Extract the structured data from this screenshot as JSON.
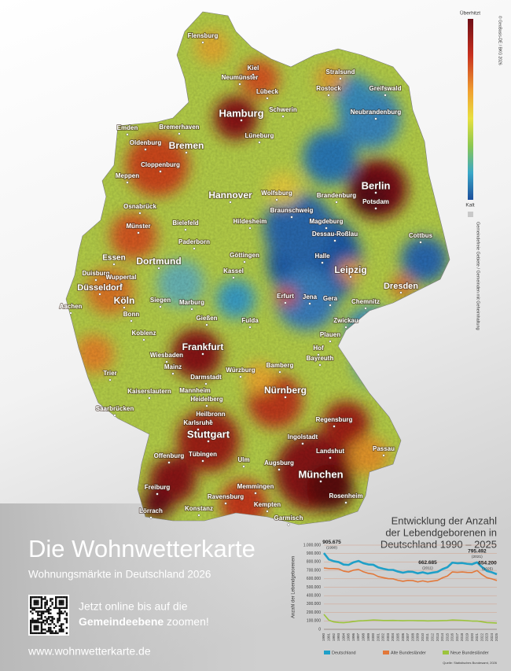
{
  "map": {
    "cities": [
      "Flensburg",
      "Kiel",
      "Neumünster",
      "Lübeck",
      "Stralsund",
      "Rostock",
      "Greifswald",
      "Hamburg",
      "Schwerin",
      "Neubrandenburg",
      "Emden",
      "Bremerhaven",
      "Lüneburg",
      "Oldenburg",
      "Bremen",
      "Cloppenburg",
      "Meppen",
      "Berlin",
      "Hannover",
      "Wolfsburg",
      "Brandenburg",
      "Potsdam",
      "Osnabrück",
      "Braunschweig",
      "Bielefeld",
      "Hildesheim",
      "Magdeburg",
      "Münster",
      "Dessau-Roßlau",
      "Cottbus",
      "Paderborn",
      "Göttingen",
      "Essen",
      "Dortmund",
      "Halle",
      "Duisburg",
      "Wuppertal",
      "Kassel",
      "Leipzig",
      "Düsseldorf",
      "Dresden",
      "Erfurt",
      "Jena",
      "Gera",
      "Chemnitz",
      "Aachen",
      "Köln",
      "Siegen",
      "Marburg",
      "Bonn",
      "Gießen",
      "Fulda",
      "Zwickau",
      "Koblenz",
      "Plauen",
      "Frankfurt",
      "Hof",
      "Bayreuth",
      "Wiesbaden",
      "Mainz",
      "Bamberg",
      "Trier",
      "Darmstadt",
      "Würzburg",
      "Mannheim",
      "Kaiserslautern",
      "Heidelberg",
      "Nürnberg",
      "Saarbrücken",
      "Heilbronn",
      "Karlsruhe",
      "Regensburg",
      "Stuttgart",
      "Ingolstadt",
      "Passau",
      "Landshut",
      "Offenburg",
      "Tübingen",
      "Ulm",
      "Augsburg",
      "München",
      "Freiburg",
      "Memmingen",
      "Ravensburg",
      "Rosenheim",
      "Kempten",
      "Konstanz",
      "Lörrach",
      "Garmisch"
    ],
    "legend": {
      "top": "Überhitzt",
      "bottom": "Kalt",
      "note": "Gemeindefreie Gebiete / Gemeinden mit Geheimhaltung"
    },
    "copyright": "© GeoBasis-DE / BKG 2026"
  },
  "poster": {
    "title": "Die Wohnwetterkarte",
    "subtitle": "Wohnungsmärkte in Deutschland 2026",
    "cta": {
      "line1": "Jetzt online bis auf die",
      "bold": "Gemeindeebene",
      "rest": " zoomen!"
    },
    "url": "www.wohnwetterkarte.de"
  },
  "chart_data": {
    "type": "line",
    "title": [
      "Entwicklung der Anzahl",
      "der Lebendgeborenen in",
      "Deutschland 1990 – 2025"
    ],
    "y_label": "Anzahl der Lebendgeborenen",
    "categories": [
      "1990",
      "1991",
      "1992",
      "1993",
      "1994",
      "1995",
      "1996",
      "1997",
      "1998",
      "1999",
      "2000",
      "2001",
      "2002",
      "2003",
      "2004",
      "2005",
      "2006",
      "2007",
      "2008",
      "2009",
      "2010",
      "2011",
      "2012",
      "2013",
      "2014",
      "2015",
      "2016",
      "2017",
      "2018",
      "2019",
      "2020",
      "2021",
      "2022",
      "2023",
      "2024",
      "2025"
    ],
    "series": [
      {
        "name": "Deutschland",
        "color": "#1fa0c8",
        "values": [
          905675,
          830019,
          809114,
          798447,
          769603,
          765221,
          796013,
          812173,
          785034,
          770744,
          766999,
          734475,
          719250,
          706721,
          705622,
          685795,
          672724,
          684862,
          682514,
          665126,
          677947,
          662685,
          673544,
          682069,
          714927,
          737575,
          792141,
          784901,
          787523,
          778090,
          773144,
          795492,
          738819,
          692989,
          677117,
          654200
        ],
        "value_labels": [
          "905.675",
          null,
          null,
          null,
          null,
          null,
          null,
          null,
          null,
          null,
          null,
          null,
          null,
          null,
          null,
          null,
          null,
          null,
          null,
          null,
          null,
          "662.685",
          null,
          null,
          null,
          null,
          null,
          null,
          null,
          null,
          null,
          "795.492",
          null,
          null,
          null,
          "654.200"
        ],
        "value_label_years": [
          "(1990)",
          null,
          null,
          null,
          null,
          null,
          null,
          null,
          null,
          null,
          null,
          null,
          null,
          null,
          null,
          null,
          null,
          null,
          null,
          null,
          null,
          "(2011)",
          null,
          null,
          null,
          null,
          null,
          null,
          null,
          null,
          null,
          "(2021)",
          null,
          null,
          null,
          "(2025)"
        ]
      },
      {
        "name": "Alte Bundesländer",
        "color": "#e2783a",
        "values": [
          728000,
          722000,
          721000,
          717000,
          691000,
          681000,
          703000,
          712000,
          683000,
          665000,
          656000,
          627000,
          614000,
          602000,
          600000,
          582000,
          571000,
          581000,
          579000,
          563000,
          576000,
          563000,
          573000,
          581000,
          612000,
          633000,
          682000,
          677000,
          682000,
          676000,
          675000,
          698000,
          650000,
          613000,
          599000,
          580000
        ]
      },
      {
        "name": "Neue Bundesländer",
        "color": "#9cc43c",
        "values": [
          178000,
          108000,
          88000,
          81000,
          79000,
          84000,
          93000,
          100000,
          102000,
          106000,
          111000,
          108000,
          105000,
          105000,
          106000,
          104000,
          102000,
          104000,
          104000,
          102000,
          102000,
          100000,
          101000,
          101000,
          103000,
          105000,
          110000,
          108000,
          106000,
          102000,
          98000,
          98000,
          89000,
          80000,
          78000,
          74000
        ]
      }
    ],
    "ylim": [
      0,
      1000000
    ],
    "yticks": [
      0,
      {
        "value": 100000,
        "label": "100.000"
      },
      {
        "value": 200000,
        "label": "200.000"
      },
      {
        "value": 300000,
        "label": "300.000"
      },
      {
        "value": 400000,
        "label": "400.000"
      },
      {
        "value": 500000,
        "label": "500.000"
      },
      {
        "value": 600000,
        "label": "600.000"
      },
      {
        "value": 700000,
        "label": "700.000"
      },
      {
        "value": 800000,
        "label": "800.000"
      },
      {
        "value": 900000,
        "label": "900.000"
      },
      {
        "value": 1000000,
        "label": "1.000.000"
      }
    ],
    "grid": true,
    "legend": "bottom",
    "source": "Quelle: Statistisches Bundesamt, 2026"
  }
}
